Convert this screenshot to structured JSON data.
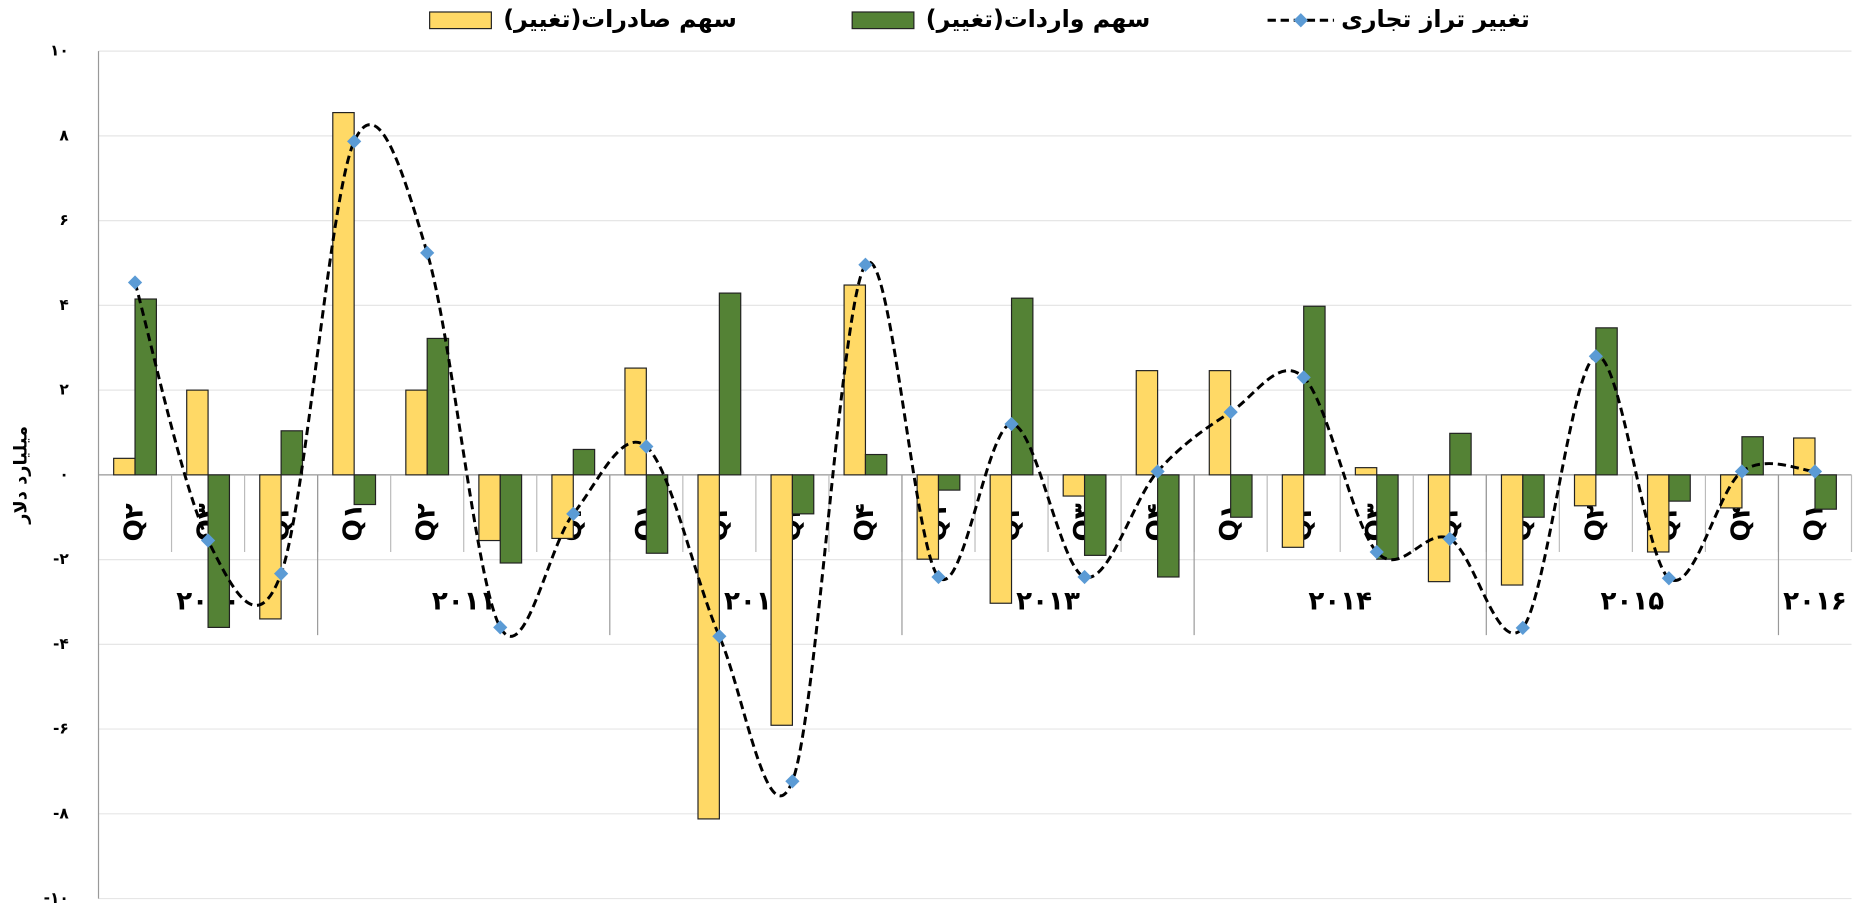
{
  "chart_data": {
    "type": "bar-line",
    "y_axis_label": "میلیارد دلار",
    "categories": [
      "Q۲",
      "Q۳",
      "Q۴",
      "Q۱",
      "Q۲",
      "Q۳",
      "Q۴",
      "Q۱",
      "Q۲",
      "Q۳",
      "Q۴",
      "Q۱",
      "Q۲",
      "Q۳",
      "Q۴",
      "Q۱",
      "Q۲",
      "Q۳",
      "Q۴",
      "Q۱",
      "Q۲",
      "Q۳",
      "Q۴",
      "Q۱"
    ],
    "year_groups": [
      {
        "label": "۲۰۱۰",
        "span": 3
      },
      {
        "label": "۲۰۱۱",
        "span": 4
      },
      {
        "label": "۲۰۱۲",
        "span": 4
      },
      {
        "label": "۲۰۱۳",
        "span": 4
      },
      {
        "label": "۲۰۱۴",
        "span": 4
      },
      {
        "label": "۲۰۱۵",
        "span": 4
      },
      {
        "label": "۲۰۱۶",
        "span": 1
      }
    ],
    "series": [
      {
        "name": "سهم صادرات(تغییر)",
        "kind": "bar",
        "color": "#FFD966",
        "values": [
          0.39,
          2.0,
          -3.4,
          8.55,
          2.0,
          -1.55,
          -1.5,
          2.52,
          -8.12,
          -5.91,
          4.48,
          -1.99,
          -3.03,
          -0.5,
          2.46,
          2.46,
          -1.71,
          0.17,
          -2.52,
          -2.6,
          -0.73,
          -1.82,
          -0.78,
          0.87
        ]
      },
      {
        "name": "سهم واردات(تغییر)",
        "kind": "bar",
        "color": "#548235",
        "values": [
          4.15,
          -3.6,
          1.04,
          -0.7,
          3.22,
          -2.08,
          0.6,
          -1.85,
          4.29,
          -0.92,
          0.48,
          -0.36,
          4.17,
          -1.9,
          -2.41,
          -1.0,
          3.98,
          -1.99,
          0.98,
          -1.0,
          3.47,
          -0.62,
          0.9,
          -0.81
        ]
      },
      {
        "name": "تغییر تراز تجاری",
        "kind": "line",
        "color": "#5B9BD5",
        "values": [
          4.54,
          -1.55,
          -2.33,
          7.87,
          5.24,
          -3.6,
          -0.92,
          0.67,
          -3.81,
          -7.23,
          4.96,
          -2.41,
          1.2,
          -2.41,
          0.08,
          1.48,
          2.3,
          -1.82,
          -1.51,
          -3.61,
          2.8,
          -2.44,
          0.08,
          0.08
        ]
      }
    ],
    "ylim": [
      -10,
      10
    ],
    "yticks": [
      {
        "value": 10,
        "label": "۱۰"
      },
      {
        "value": 8,
        "label": "۸"
      },
      {
        "value": 6,
        "label": "۶"
      },
      {
        "value": 4,
        "label": "۴"
      },
      {
        "value": 2,
        "label": "۲"
      },
      {
        "value": 0,
        "label": "۰"
      },
      {
        "value": -2,
        "label": "-۲"
      },
      {
        "value": -4,
        "label": "-۴"
      },
      {
        "value": -6,
        "label": "-۶"
      },
      {
        "value": -8,
        "label": "-۸"
      },
      {
        "value": -10,
        "label": "-۱۰"
      }
    ],
    "grid": true
  }
}
